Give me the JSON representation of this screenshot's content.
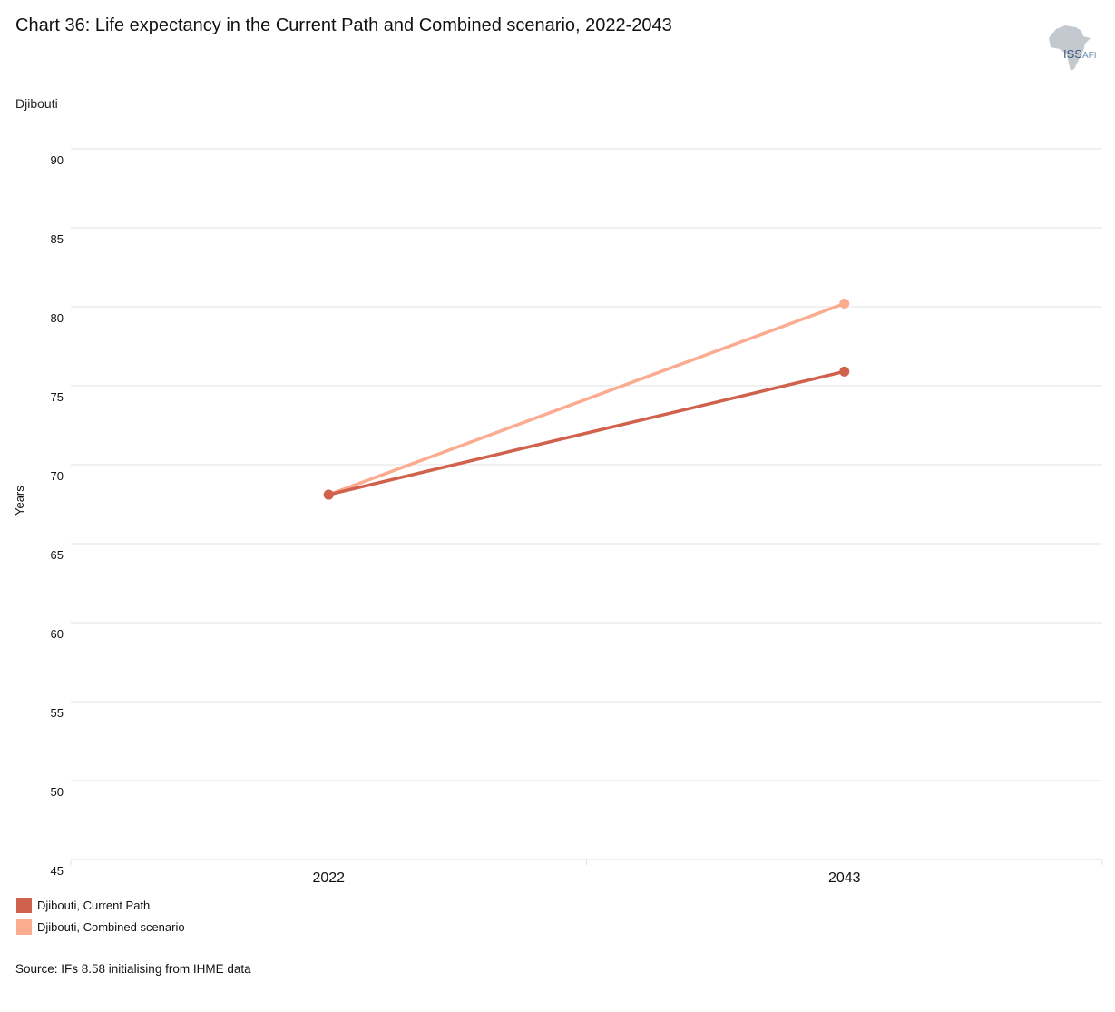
{
  "header": {
    "title": "Chart 36: Life expectancy in the Current Path and Combined scenario, 2022-2043",
    "subtitle": "Djibouti"
  },
  "logo": {
    "main": "ISS",
    "suffix": "AFI"
  },
  "footer": {
    "source": "Source: IFs 8.58 initialising from IHME data"
  },
  "chart_data": {
    "type": "line",
    "x": [
      "2022",
      "2043"
    ],
    "ylabel": "Years",
    "xlabel": "",
    "ylim": [
      45,
      90
    ],
    "yticks": [
      45,
      50,
      55,
      60,
      65,
      70,
      75,
      80,
      85,
      90
    ],
    "grid": true,
    "legend_position": "bottom-left",
    "series": [
      {
        "name": "Djibouti, Current Path",
        "values": [
          68.1,
          75.9
        ],
        "color": "#d0614c"
      },
      {
        "name": "Djibouti, Combined scenario",
        "values": [
          68.1,
          80.2
        ],
        "color": "#fbab8f"
      }
    ]
  }
}
